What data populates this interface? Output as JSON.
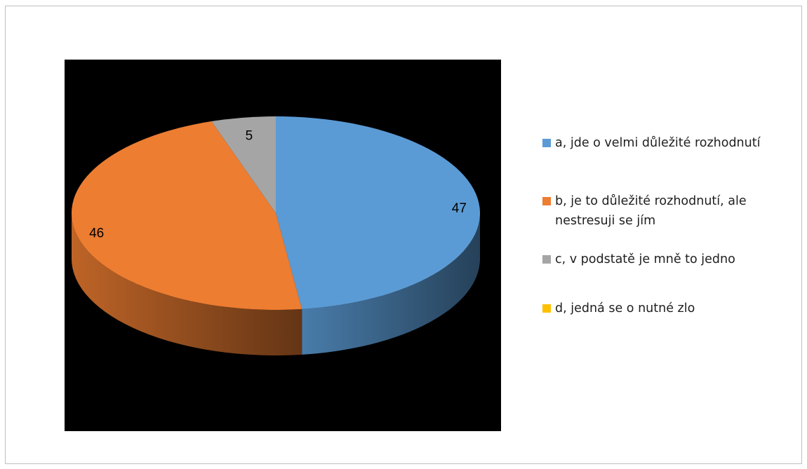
{
  "chart_data": {
    "type": "pie",
    "title": "",
    "categories": [
      "a, jde o velmi důležité rozhodnutí",
      "b, je to důležité rozhodnutí, ale nestresuji se jím",
      "c, v podstatě je mně to jedno",
      "d, jedná se o nutné zlo"
    ],
    "values": [
      47,
      46,
      5,
      0
    ],
    "data_labels": [
      "47",
      "46",
      "5",
      ""
    ],
    "colors": [
      "#5b9bd5",
      "#ed7d31",
      "#a5a5a5",
      "#ffc000"
    ],
    "plot_background": "#000000",
    "legend_position": "right",
    "style": "3d-exploded-pie"
  },
  "legend": {
    "items": [
      {
        "label": "a, jde o velmi důležité rozhodnutí",
        "color": "#5b9bd5"
      },
      {
        "label": "b, je to důležité rozhodnutí, ale nestresuji se jím",
        "color": "#ed7d31"
      },
      {
        "label": "c, v podstatě je mně to jedno",
        "color": "#a5a5a5"
      },
      {
        "label": "d, jedná se o nutné zlo",
        "color": "#ffc000"
      }
    ]
  }
}
